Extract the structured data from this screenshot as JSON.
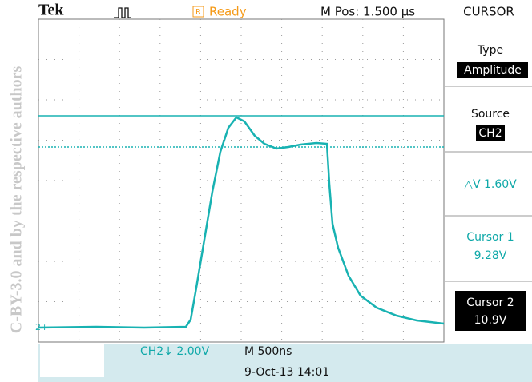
{
  "watermark": "C-BY-3.0 and by the respective authors",
  "header": {
    "brand": "Tek",
    "status_icon": "R",
    "status": "Ready",
    "position": "M Pos: 1.500 µs",
    "mode": "CURSOR"
  },
  "marker": "2+",
  "menu": [
    {
      "label": "Type",
      "value": "Amplitude"
    },
    {
      "label": "Source",
      "value": "CH2"
    },
    {
      "label": "△V 1.60V"
    },
    {
      "label": "Cursor 1",
      "value": "9.28V"
    },
    {
      "label": "Cursor 2",
      "value": "10.9V"
    }
  ],
  "footer": {
    "channel": "CH2↓ 2.00V",
    "timebase": "M 500ns",
    "datetime": "9-Oct-13 14:01"
  }
}
